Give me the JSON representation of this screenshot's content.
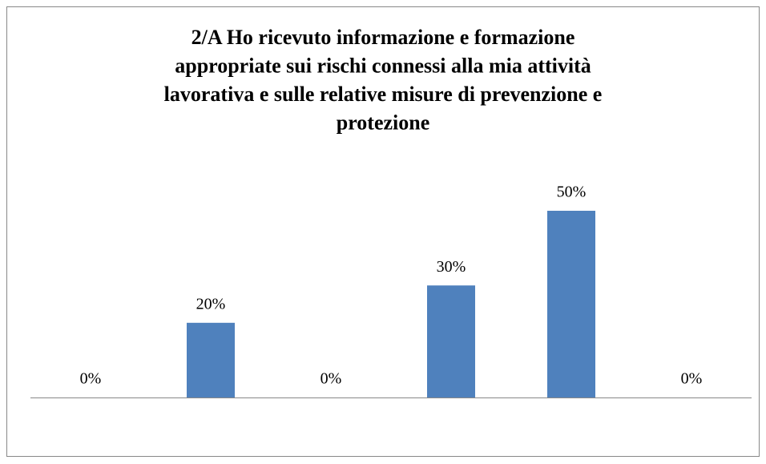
{
  "chart_data": {
    "type": "bar",
    "title": [
      "2/A Ho ricevuto informazione e formazione",
      "appropriate sui rischi connessi alla mia attività",
      "lavorativa e sulle relative misure di prevenzione e",
      "protezione"
    ],
    "categories": [
      null,
      null,
      null,
      null,
      null,
      null
    ],
    "values": [
      0,
      20,
      0,
      30,
      50,
      0
    ],
    "value_labels": [
      "0%",
      "20%",
      "0%",
      "30%",
      "50%",
      "0%"
    ],
    "color": "#4f81bd"
  }
}
